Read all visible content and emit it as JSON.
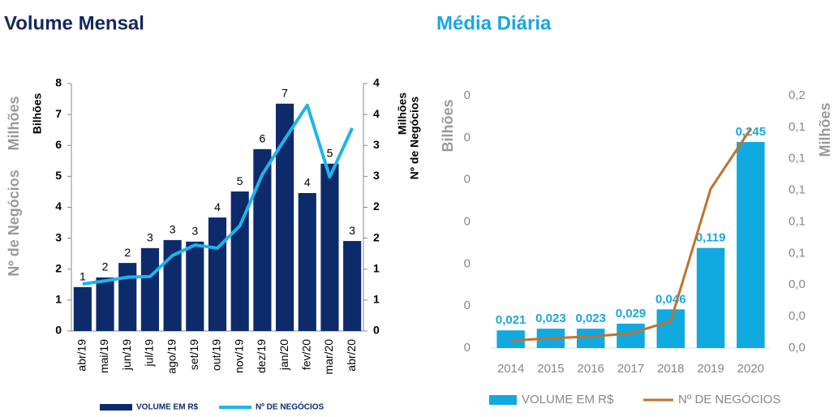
{
  "clipped_labels": [
    "Milhões",
    "Nº de Negócios"
  ],
  "chart_data": [
    {
      "type": "combo",
      "title": "Volume Mensal",
      "title_color": "#14275e",
      "ylabel": "Bilhões",
      "y2label": [
        "Milhões",
        "Nº de Negócios"
      ],
      "categories": [
        "abr/19",
        "mai/19",
        "jun/19",
        "jul/19",
        "ago/19",
        "set/19",
        "out/19",
        "nov/19",
        "dez/19",
        "jan/20",
        "fev/20",
        "mar/20",
        "abr/20"
      ],
      "series": [
        {
          "name": "VOLUME EM R$",
          "kind": "bar",
          "color": "#0d2a6b",
          "values": [
            1.42,
            1.73,
            2.2,
            2.68,
            2.94,
            2.89,
            3.67,
            4.51,
            5.88,
            7.35,
            4.46,
            5.41,
            2.91
          ],
          "value_labels": [
            "1",
            "2",
            "2",
            "3",
            "3",
            "3",
            "4",
            "5",
            "6",
            "7",
            "4",
            "5",
            "3"
          ]
        },
        {
          "name": "Nº DE NEGÓCIOS",
          "kind": "line",
          "axis": "y2",
          "color": "#1eb4ea",
          "values": [
            0.76,
            0.81,
            0.87,
            0.88,
            1.22,
            1.39,
            1.34,
            1.7,
            2.53,
            3.1,
            3.65,
            2.49,
            3.28
          ]
        }
      ],
      "ylim": [
        0,
        8
      ],
      "yticks": [
        0,
        1,
        2,
        3,
        4,
        5,
        6,
        7,
        8
      ],
      "y2lim": [
        0,
        4
      ],
      "y2ticks": [
        0,
        {
          "value": 0.5,
          "label": "1"
        },
        1,
        {
          "value": 1.5,
          "label": "2"
        },
        2,
        {
          "value": 2.5,
          "label": "3"
        },
        3,
        {
          "value": 3.5,
          "label": "4"
        },
        4
      ]
    },
    {
      "type": "combo",
      "title": "Média Diária",
      "title_color": "#1aa6e0",
      "ylabel": "Bilhões",
      "y2label": [
        "Milhões"
      ],
      "categories": [
        "2014",
        "2015",
        "2016",
        "2017",
        "2018",
        "2019",
        "2020"
      ],
      "series": [
        {
          "name": "VOLUME EM R$",
          "kind": "bar",
          "color": "#10a9e0",
          "values": [
            0.021,
            0.023,
            0.023,
            0.029,
            0.046,
            0.119,
            0.245
          ],
          "value_labels": [
            "0,021",
            "0,023",
            "0,023",
            "0,029",
            "0,046",
            "0,119",
            "0,245"
          ]
        },
        {
          "name": "Nº DE NEGÓCIOS",
          "kind": "line",
          "axis": "y2",
          "color": "#c0722a",
          "values": [
            0.0047,
            0.0062,
            0.0073,
            0.0093,
            0.0171,
            0.101,
            0.139
          ]
        }
      ],
      "ylim": [
        0,
        0.3
      ],
      "yticks": [
        0,
        {
          "value": 0.05,
          "label": "0"
        },
        {
          "value": 0.1,
          "label": "0"
        },
        {
          "value": 0.15,
          "label": "0"
        },
        {
          "value": 0.2,
          "label": "0"
        },
        {
          "value": 0.25,
          "label": "0"
        },
        {
          "value": 0.3,
          "label": "0"
        }
      ],
      "y2lim": [
        0,
        0.16
      ],
      "y2ticks": [
        {
          "value": 0,
          "label": "0,0"
        },
        {
          "value": 0.02,
          "label": "0,0"
        },
        {
          "value": 0.04,
          "label": "0,0"
        },
        {
          "value": 0.06,
          "label": "0,1"
        },
        {
          "value": 0.08,
          "label": "0,1"
        },
        {
          "value": 0.1,
          "label": "0,1"
        },
        {
          "value": 0.12,
          "label": "0,1"
        },
        {
          "value": 0.14,
          "label": "0,1"
        },
        {
          "value": 0.16,
          "label": "0,2"
        }
      ]
    }
  ]
}
